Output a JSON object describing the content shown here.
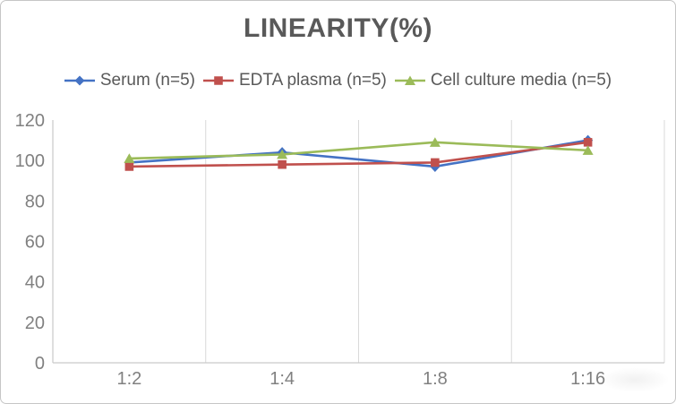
{
  "window": {
    "background": "#ffffff",
    "border_color": "#c6c6c6"
  },
  "chart_data": {
    "type": "line",
    "title": "LINEARITY(%)",
    "categories": [
      "1:2",
      "1:4",
      "1:8",
      "1:16"
    ],
    "series": [
      {
        "name": "Serum (n=5)",
        "color": "#4472C4",
        "marker": "diamond",
        "values": [
          99,
          104,
          97,
          110
        ]
      },
      {
        "name": "EDTA plasma (n=5)",
        "color": "#C0504D",
        "marker": "square",
        "values": [
          97,
          98,
          99,
          109
        ]
      },
      {
        "name": "Cell culture media (n=5)",
        "color": "#9BBB59",
        "marker": "triangle",
        "values": [
          101,
          103,
          109,
          105
        ]
      }
    ],
    "ylim": [
      0,
      120
    ],
    "yticks": [
      0,
      20,
      40,
      60,
      80,
      100,
      120
    ],
    "xlabel": "",
    "ylabel": "",
    "grid": "vertical-only",
    "legend_position": "top"
  },
  "styles": {
    "title_color": "#595959",
    "tick_label_color": "#808080",
    "grid_color": "#d9d9d9",
    "axis_color": "#c9c9c9"
  }
}
